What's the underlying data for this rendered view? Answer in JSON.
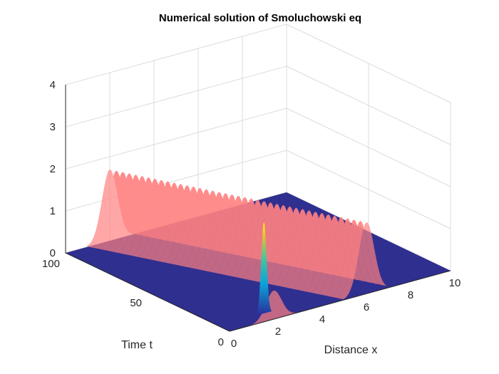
{
  "chart_data": {
    "type": "surface",
    "title": "Numerical solution of Smoluchowski eq",
    "xlabel": "Distance x",
    "ylabel": "Time t",
    "zlabel": "",
    "xlim": [
      0,
      10
    ],
    "ylim": [
      0,
      100
    ],
    "zlim": [
      0,
      4
    ],
    "xticks": [
      "0",
      "2",
      "4",
      "6",
      "8",
      "10"
    ],
    "yticks": [
      "0",
      "50",
      "100"
    ],
    "zticks": [
      "0",
      "1",
      "2",
      "3",
      "4"
    ],
    "grid": true,
    "series": [
      {
        "surface": "initial-pulse",
        "color": "#ff8080",
        "alpha": 0.7,
        "center_x": 2.0,
        "width": 0.35,
        "peak_z": 1.7,
        "drift_per_t": 0.0
      },
      {
        "surface": "drifting-peak",
        "colormap": "parula",
        "center_x": 2.0,
        "width": 0.12,
        "peak_z": 2.2,
        "drift_per_t": 0.0
      },
      {
        "surface": "travelling-pulse",
        "color": "#ff8080",
        "alpha": 0.7,
        "center_x_at_t0": 6.2,
        "center_x_at_t100": 2.0,
        "width": 0.35,
        "peak_z": 1.7
      },
      {
        "surface": "base-plane",
        "color": "#2f2f90",
        "z": 0
      }
    ]
  }
}
